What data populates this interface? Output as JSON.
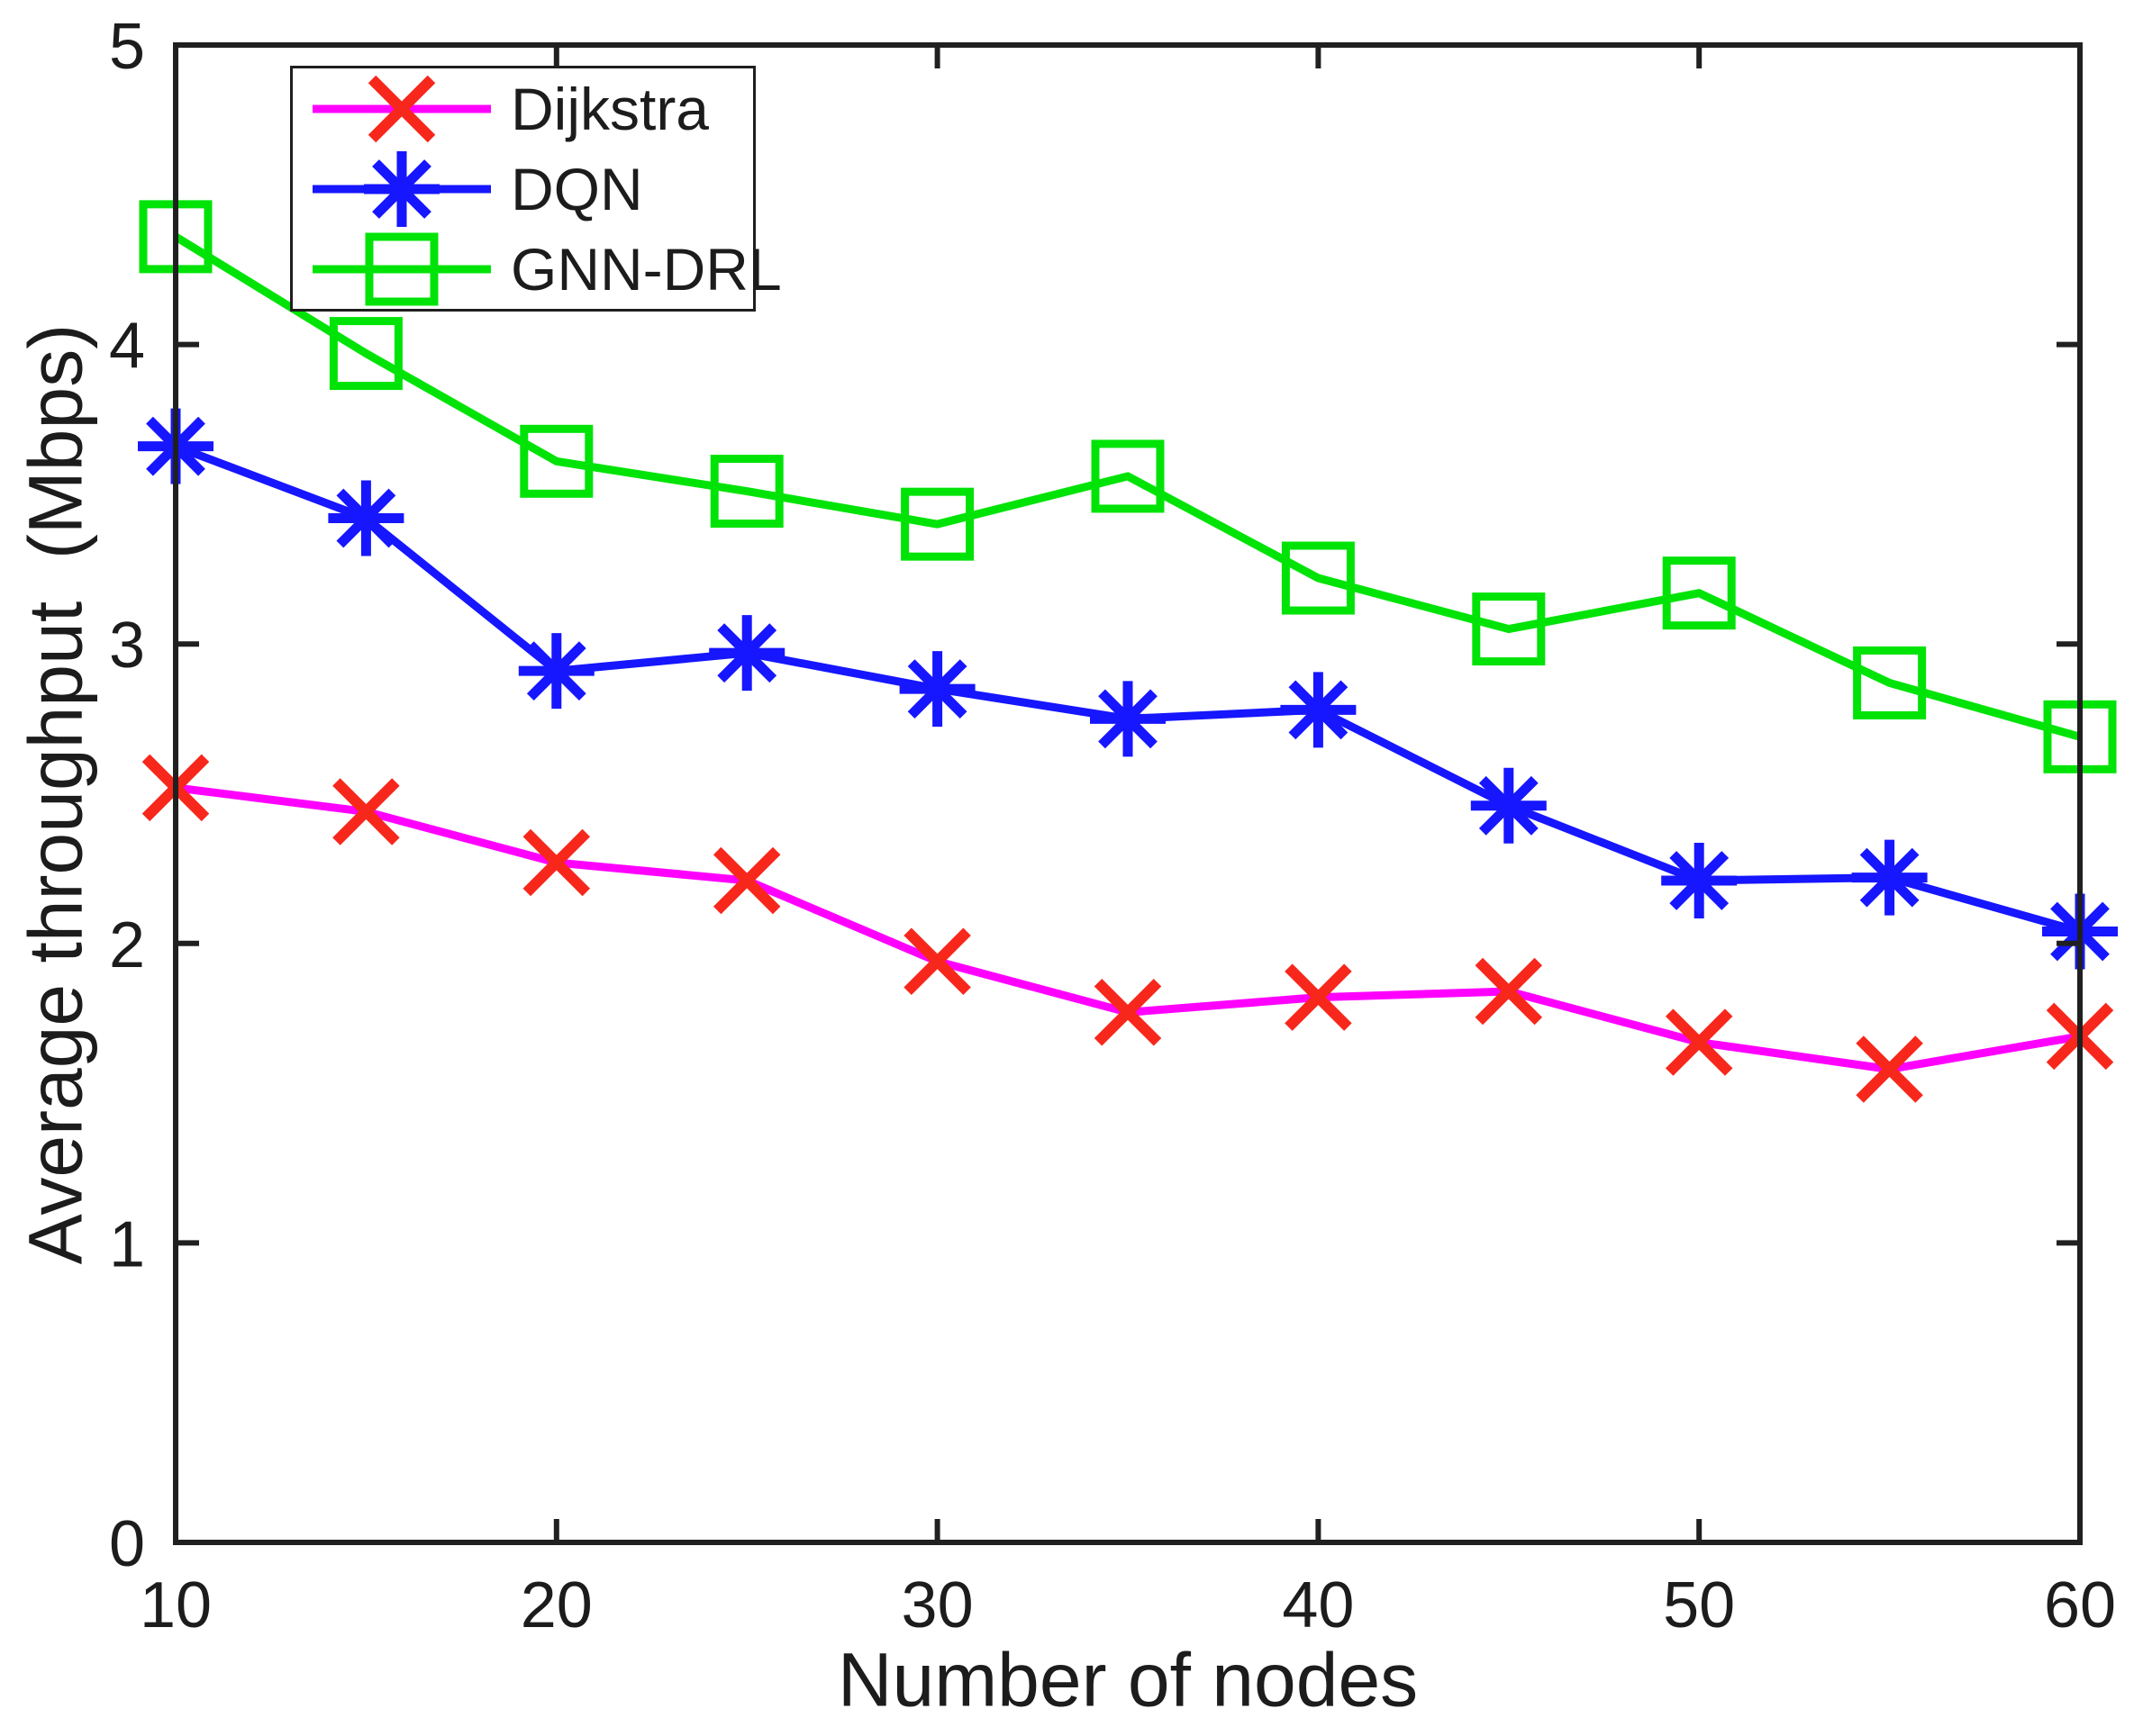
{
  "labels": {
    "xlabel": "Number of nodes",
    "ylabel": "Average throughput  (Mbps)"
  },
  "style": {
    "background": "#ffffff",
    "axis_color": "#202020",
    "text_color": "#1c1c1c"
  },
  "chart_data": {
    "type": "line",
    "title": "",
    "xlabel": "Number of nodes",
    "ylabel": "Average throughput  (Mbps)",
    "xlim": [
      10,
      60
    ],
    "ylim": [
      0,
      5
    ],
    "xticks": [
      10,
      20,
      30,
      40,
      50,
      60
    ],
    "yticks": [
      0,
      1,
      2,
      3,
      4,
      5
    ],
    "grid": false,
    "legend_position": "top-left",
    "x": [
      10,
      15,
      20,
      25,
      30,
      35,
      40,
      45,
      50,
      55,
      60
    ],
    "series": [
      {
        "name": "Dijkstra",
        "marker": "x",
        "line_color": "#ff00ff",
        "marker_color": "#f7271c",
        "values": [
          2.52,
          2.44,
          2.27,
          2.21,
          1.94,
          1.77,
          1.82,
          1.84,
          1.67,
          1.58,
          1.69
        ]
      },
      {
        "name": "DQN",
        "marker": "asterisk",
        "line_color": "#1616ff",
        "marker_color": "#1616ff",
        "values": [
          3.66,
          3.42,
          2.91,
          2.97,
          2.85,
          2.75,
          2.78,
          2.46,
          2.21,
          2.22,
          2.04
        ]
      },
      {
        "name": "GNN-DRL",
        "marker": "square",
        "line_color": "#00e307",
        "marker_color": "#00e307",
        "values": [
          4.36,
          3.97,
          3.61,
          3.51,
          3.4,
          3.56,
          3.22,
          3.05,
          3.17,
          2.87,
          2.69
        ]
      }
    ]
  }
}
